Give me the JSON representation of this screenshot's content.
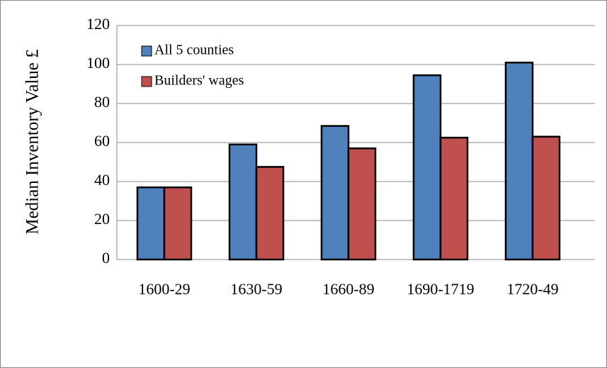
{
  "chart_data": {
    "type": "bar",
    "y_axis_label": "Median Inventory Value £",
    "categories": [
      "1600-29",
      "1630-59",
      "1660-89",
      "1690-1719",
      "1720-49"
    ],
    "series": [
      {
        "name": "All 5 counties",
        "color": "#4f81bd",
        "values": [
          37,
          59,
          68.5,
          94.5,
          101
        ]
      },
      {
        "name": "Builders' wages",
        "color": "#c0504d",
        "values": [
          37,
          47.5,
          57,
          62.5,
          63
        ]
      }
    ],
    "ylim": [
      0,
      120
    ],
    "yticks": [
      0,
      20,
      40,
      60,
      80,
      100,
      120
    ],
    "grid": true,
    "legend": "top-left"
  }
}
